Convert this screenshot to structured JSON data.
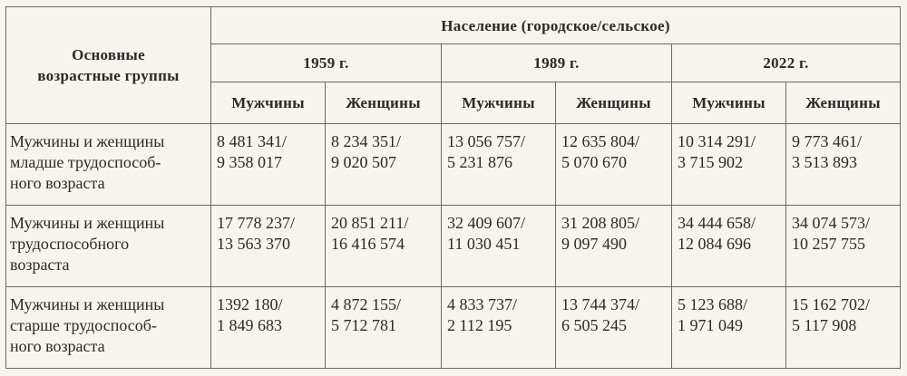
{
  "table": {
    "header": {
      "group_label": "Основные\nвозрастные группы",
      "population_label": "Население (городское/сельское)",
      "years": [
        "1959 г.",
        "1989 г.",
        "2022 г."
      ],
      "sexes": [
        "Мужчины",
        "Женщины",
        "Мужчины",
        "Женщины",
        "Мужчины",
        "Женщины"
      ]
    },
    "rows": [
      {
        "label": "Мужчины и женщины\nмладше трудоспособ-\nного возраста",
        "cells": [
          "8 481 341/\n9 358 017",
          "8 234 351/\n9 020 507",
          "13 056 757/\n5 231 876",
          "12 635 804/\n5 070 670",
          "10 314 291/\n3 715 902",
          "9 773 461/\n3 513 893"
        ]
      },
      {
        "label": "Мужчины и женщины\nтрудоспособного\nвозраста",
        "cells": [
          "17 778 237/\n13 563 370",
          "20 851 211/\n16 416 574",
          "32 409 607/\n11 030 451",
          "31 208 805/\n9 097 490",
          "34 444 658/\n12 084 696",
          "34 074 573/\n10 257 755"
        ]
      },
      {
        "label": "Мужчины и женщины\nстарше трудоспособ-\nного возраста",
        "cells": [
          "1392 180/\n1 849 683",
          "4 872 155/\n5 712 781",
          "4 833 737/\n2 112 195",
          "13 744 374/\n6 505 245",
          "5 123 688/\n1 971 049",
          "15 162 702/\n5 117 908"
        ]
      }
    ]
  }
}
